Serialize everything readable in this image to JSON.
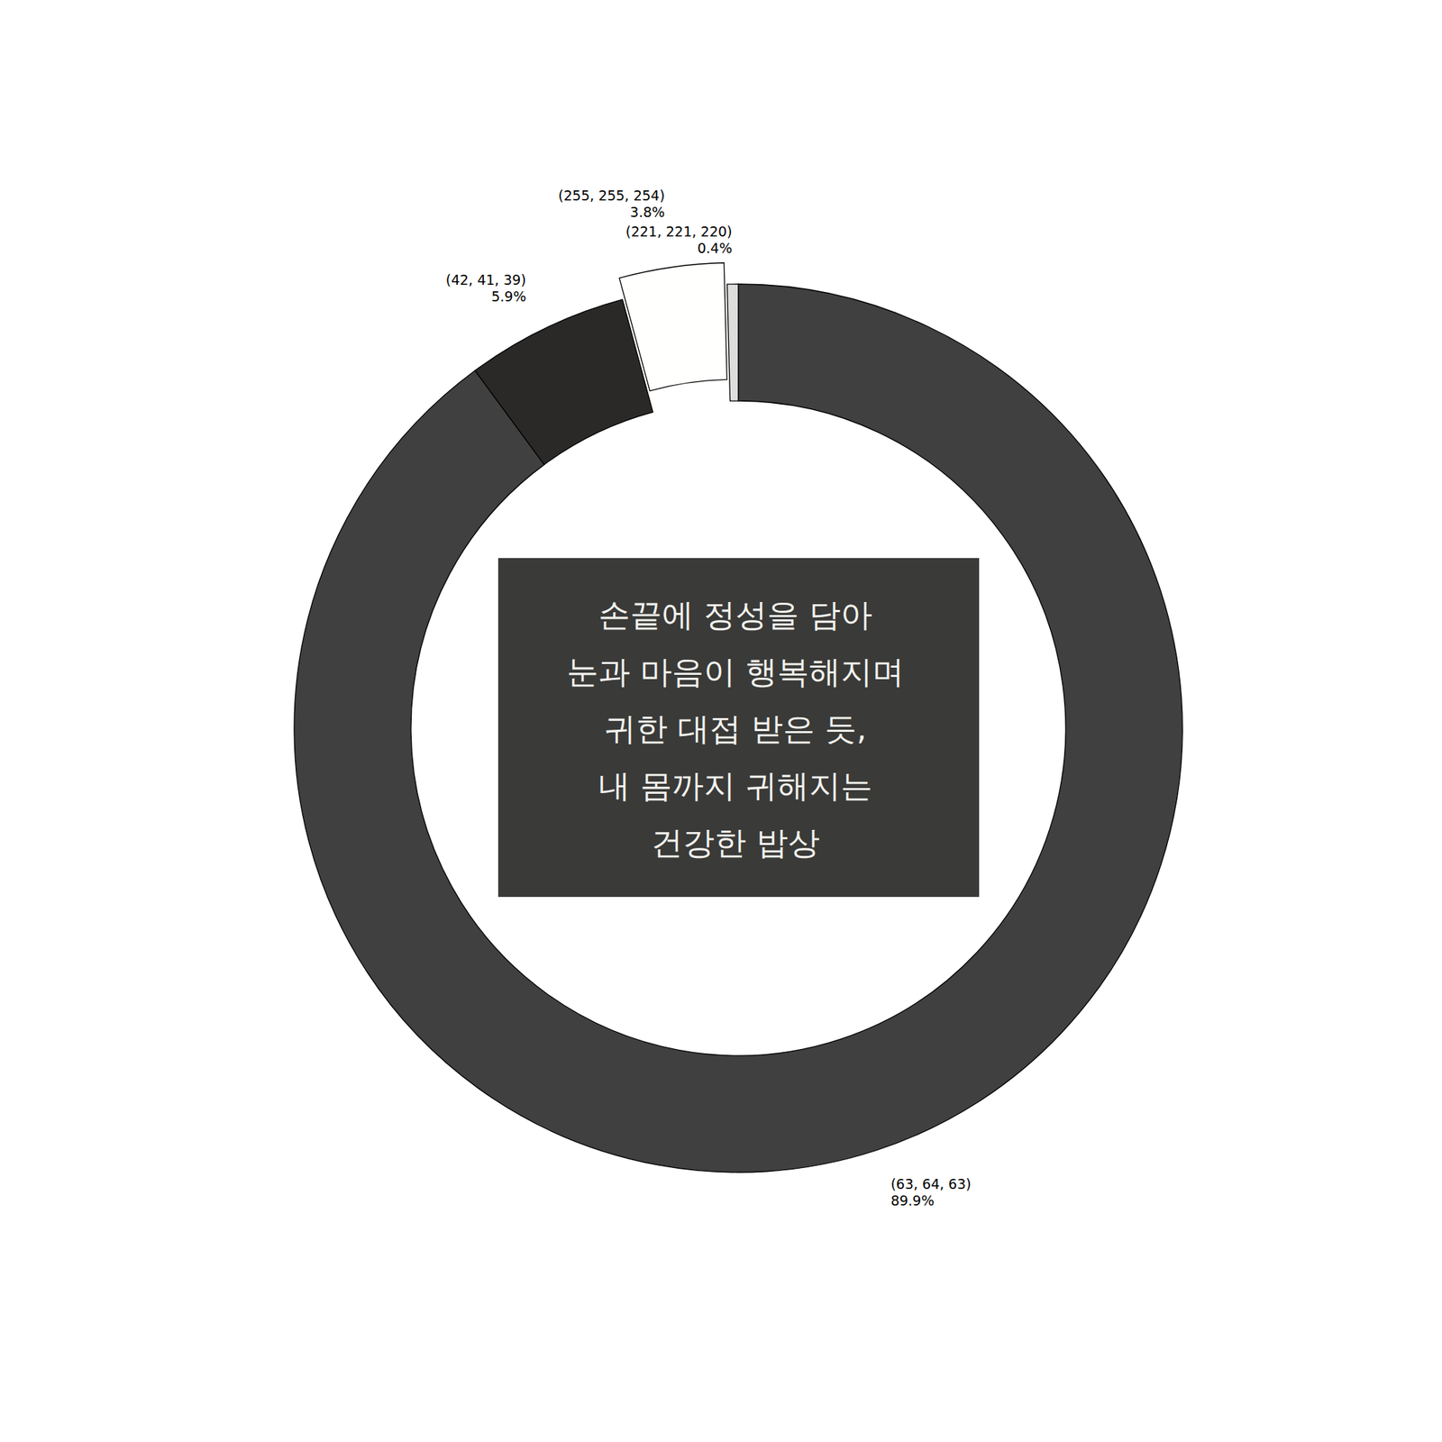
{
  "chart_data": {
    "type": "donut",
    "categories": [
      "(63, 64, 63)",
      "(42, 41, 39)",
      "(255, 255, 254)",
      "(221, 221, 220)"
    ],
    "values": [
      89.9,
      5.9,
      3.8,
      0.4
    ],
    "value_labels": [
      "89.9%",
      "5.9%",
      "3.8%",
      "0.4%"
    ],
    "colors": [
      "#3f403f",
      "#2a2927",
      "#fffffe",
      "#dddddc"
    ],
    "data_labels": true,
    "annotations": [
      "손끝에 정성을 담아",
      "눈과 마음이 행복해지며",
      "귀한 대접 받은 듯,",
      "내 몸까지 귀해지는",
      "건강한 밥상"
    ]
  }
}
